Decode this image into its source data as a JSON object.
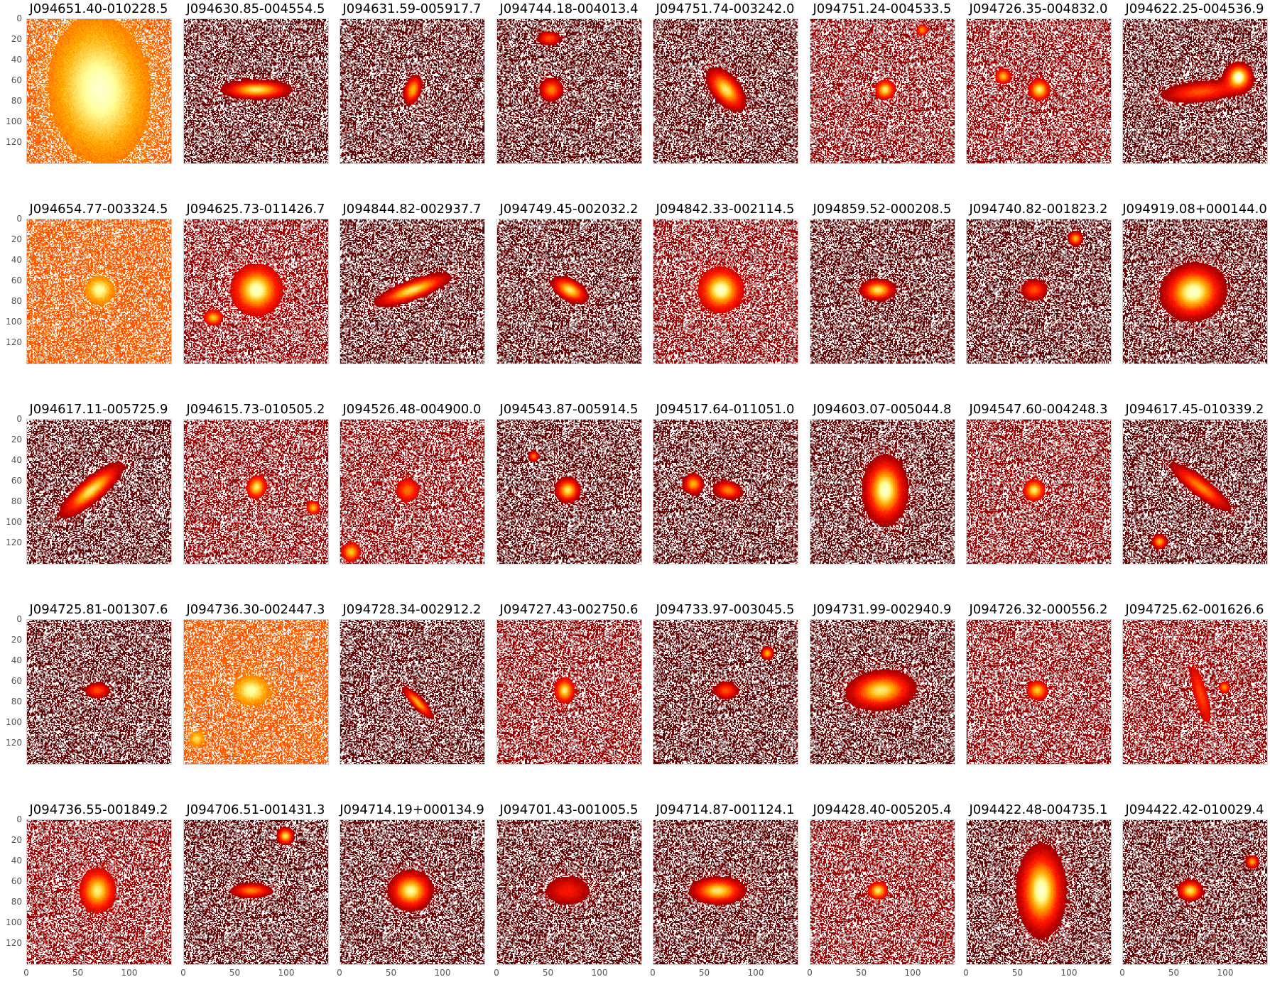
{
  "grid": {
    "rows": 5,
    "cols": 8
  },
  "y_ticks": [
    "0",
    "20",
    "40",
    "60",
    "80",
    "100",
    "120"
  ],
  "x_ticks": [
    "0",
    "50",
    "100"
  ],
  "colors": {
    "bg_dark": "#5a0000",
    "mid_red": "#c82000",
    "orange": "#ff7a00",
    "bright": "#ffe7c8",
    "noise_white": "#ffffff"
  },
  "cutouts": [
    {
      "name": "J094651.40-010228.5",
      "gals": [
        {
          "x": 70,
          "y": 68,
          "rx": 48,
          "ry": 70,
          "a": -0.1,
          "b": 1.0
        }
      ],
      "bg": "orange"
    },
    {
      "name": "J094630.85-004554.5",
      "gals": [
        {
          "x": 70,
          "y": 68,
          "rx": 35,
          "ry": 10,
          "a": 0,
          "b": 0.9
        }
      ],
      "bg": "dark"
    },
    {
      "name": "J094631.59-005917.7",
      "gals": [
        {
          "x": 70,
          "y": 68,
          "rx": 9,
          "ry": 16,
          "a": 0.3,
          "b": 0.8
        }
      ],
      "bg": "dark"
    },
    {
      "name": "J094744.18-004013.4",
      "gals": [
        {
          "x": 52,
          "y": 68,
          "rx": 13,
          "ry": 13,
          "a": 0,
          "b": 0.7
        },
        {
          "x": 50,
          "y": 18,
          "rx": 13,
          "ry": 8,
          "a": 0,
          "b": 0.6
        }
      ],
      "bg": "dark"
    },
    {
      "name": "J094751.74-003242.0",
      "gals": [
        {
          "x": 70,
          "y": 68,
          "rx": 14,
          "ry": 26,
          "a": -0.7,
          "b": 0.9
        }
      ],
      "bg": "dark"
    },
    {
      "name": "J094751.24-004533.5",
      "gals": [
        {
          "x": 72,
          "y": 68,
          "rx": 10,
          "ry": 10,
          "a": 0,
          "b": 0.9
        },
        {
          "x": 108,
          "y": 10,
          "rx": 6,
          "ry": 6,
          "a": 0,
          "b": 0.7
        }
      ],
      "bg": "mixed"
    },
    {
      "name": "J094726.35-004832.0",
      "gals": [
        {
          "x": 70,
          "y": 68,
          "rx": 11,
          "ry": 11,
          "a": 0,
          "b": 0.9
        },
        {
          "x": 35,
          "y": 55,
          "rx": 8,
          "ry": 8,
          "a": 0,
          "b": 0.8
        }
      ],
      "bg": "mixed"
    },
    {
      "name": "J094622.25-004536.9",
      "gals": [
        {
          "x": 112,
          "y": 55,
          "rx": 14,
          "ry": 14,
          "a": 0,
          "b": 1.0
        },
        {
          "x": 75,
          "y": 70,
          "rx": 45,
          "ry": 12,
          "a": -0.1,
          "b": 0.6
        }
      ],
      "bg": "dark"
    },
    {
      "name": "J094654.77-003324.5",
      "gals": [
        {
          "x": 70,
          "y": 68,
          "rx": 14,
          "ry": 14,
          "a": 0,
          "b": 0.9
        }
      ],
      "bg": "orange"
    },
    {
      "name": "J094625.73-011426.7",
      "gals": [
        {
          "x": 70,
          "y": 68,
          "rx": 25,
          "ry": 25,
          "a": 0,
          "b": 1.0
        },
        {
          "x": 28,
          "y": 95,
          "rx": 10,
          "ry": 8,
          "a": 0,
          "b": 0.8
        }
      ],
      "bg": "mixed"
    },
    {
      "name": "J094844.82-002937.7",
      "gals": [
        {
          "x": 70,
          "y": 68,
          "rx": 40,
          "ry": 10,
          "a": -0.35,
          "b": 0.9
        }
      ],
      "bg": "dark"
    },
    {
      "name": "J094749.45-002032.2",
      "gals": [
        {
          "x": 70,
          "y": 68,
          "rx": 20,
          "ry": 11,
          "a": 0.5,
          "b": 0.9
        }
      ],
      "bg": "dark"
    },
    {
      "name": "J094842.33-002114.5",
      "gals": [
        {
          "x": 65,
          "y": 68,
          "rx": 22,
          "ry": 22,
          "a": 0,
          "b": 1.0
        }
      ],
      "bg": "mixed"
    },
    {
      "name": "J094859.52-000208.5",
      "gals": [
        {
          "x": 65,
          "y": 68,
          "rx": 18,
          "ry": 11,
          "a": 0,
          "b": 0.9
        }
      ],
      "bg": "dark"
    },
    {
      "name": "J094740.82-001823.2",
      "gals": [
        {
          "x": 65,
          "y": 68,
          "rx": 15,
          "ry": 12,
          "a": 0,
          "b": 0.6
        },
        {
          "x": 105,
          "y": 18,
          "rx": 8,
          "ry": 8,
          "a": 0,
          "b": 0.8
        }
      ],
      "bg": "dark"
    },
    {
      "name": "J094919.08+000144.0",
      "gals": [
        {
          "x": 68,
          "y": 70,
          "rx": 32,
          "ry": 28,
          "a": -0.2,
          "b": 1.0
        }
      ],
      "bg": "dark"
    },
    {
      "name": "J094617.11-005725.9",
      "gals": [
        {
          "x": 62,
          "y": 68,
          "rx": 40,
          "ry": 12,
          "a": -0.7,
          "b": 0.9
        }
      ],
      "bg": "dark"
    },
    {
      "name": "J094615.73-010505.2",
      "gals": [
        {
          "x": 70,
          "y": 65,
          "rx": 10,
          "ry": 12,
          "a": 0.3,
          "b": 0.9
        },
        {
          "x": 125,
          "y": 85,
          "rx": 7,
          "ry": 7,
          "a": 0,
          "b": 0.8
        }
      ],
      "bg": "mixed"
    },
    {
      "name": "J094526.48-004900.0",
      "gals": [
        {
          "x": 65,
          "y": 68,
          "rx": 13,
          "ry": 13,
          "a": 0,
          "b": 0.6
        },
        {
          "x": 10,
          "y": 128,
          "rx": 10,
          "ry": 10,
          "a": 0,
          "b": 0.8
        }
      ],
      "bg": "mixed"
    },
    {
      "name": "J094543.87-005914.5",
      "gals": [
        {
          "x": 68,
          "y": 68,
          "rx": 13,
          "ry": 13,
          "a": 0,
          "b": 0.9
        },
        {
          "x": 35,
          "y": 35,
          "rx": 6,
          "ry": 6,
          "a": 0,
          "b": 0.7
        }
      ],
      "bg": "dark"
    },
    {
      "name": "J094517.64-011051.0",
      "gals": [
        {
          "x": 38,
          "y": 62,
          "rx": 11,
          "ry": 11,
          "a": 0,
          "b": 0.8
        },
        {
          "x": 72,
          "y": 68,
          "rx": 16,
          "ry": 10,
          "a": 0.2,
          "b": 0.7
        }
      ],
      "bg": "dark"
    },
    {
      "name": "J094603.07-005044.8",
      "gals": [
        {
          "x": 72,
          "y": 68,
          "rx": 22,
          "ry": 34,
          "a": 0,
          "b": 1.0
        }
      ],
      "bg": "dark"
    },
    {
      "name": "J094547.60-004248.3",
      "gals": [
        {
          "x": 65,
          "y": 68,
          "rx": 11,
          "ry": 11,
          "a": 0,
          "b": 0.9
        }
      ],
      "bg": "mixed"
    },
    {
      "name": "J094617.45-010339.2",
      "gals": [
        {
          "x": 75,
          "y": 65,
          "rx": 40,
          "ry": 10,
          "a": 0.65,
          "b": 0.7
        },
        {
          "x": 35,
          "y": 118,
          "rx": 8,
          "ry": 8,
          "a": 0,
          "b": 0.8
        }
      ],
      "bg": "dark"
    },
    {
      "name": "J094725.81-001307.6",
      "gals": [
        {
          "x": 68,
          "y": 68,
          "rx": 14,
          "ry": 9,
          "a": 0,
          "b": 0.6
        }
      ],
      "bg": "dark"
    },
    {
      "name": "J094736.30-002447.3",
      "gals": [
        {
          "x": 65,
          "y": 68,
          "rx": 18,
          "ry": 15,
          "a": 0,
          "b": 0.9
        },
        {
          "x": 12,
          "y": 115,
          "rx": 8,
          "ry": 8,
          "a": 0,
          "b": 0.7
        }
      ],
      "bg": "orange"
    },
    {
      "name": "J094728.34-002912.2",
      "gals": [
        {
          "x": 75,
          "y": 80,
          "rx": 22,
          "ry": 6,
          "a": 0.8,
          "b": 0.8
        }
      ],
      "bg": "dark"
    },
    {
      "name": "J094727.43-002750.6",
      "gals": [
        {
          "x": 65,
          "y": 68,
          "rx": 10,
          "ry": 13,
          "a": 0,
          "b": 0.9
        }
      ],
      "bg": "mixed"
    },
    {
      "name": "J094733.97-003045.5",
      "gals": [
        {
          "x": 70,
          "y": 68,
          "rx": 14,
          "ry": 10,
          "a": 0,
          "b": 0.6
        },
        {
          "x": 110,
          "y": 32,
          "rx": 7,
          "ry": 7,
          "a": 0,
          "b": 0.8
        }
      ],
      "bg": "dark"
    },
    {
      "name": "J094731.99-002940.9",
      "gals": [
        {
          "x": 68,
          "y": 68,
          "rx": 35,
          "ry": 20,
          "a": -0.1,
          "b": 0.9
        }
      ],
      "bg": "dark"
    },
    {
      "name": "J094726.32-000556.2",
      "gals": [
        {
          "x": 68,
          "y": 68,
          "rx": 11,
          "ry": 10,
          "a": 0,
          "b": 0.8
        }
      ],
      "bg": "mixed"
    },
    {
      "name": "J094725.62-001626.6",
      "gals": [
        {
          "x": 75,
          "y": 72,
          "rx": 35,
          "ry": 8,
          "a": 1.3,
          "b": 0.5
        },
        {
          "x": 98,
          "y": 65,
          "rx": 6,
          "ry": 6,
          "a": 0,
          "b": 0.7
        }
      ],
      "bg": "mixed"
    },
    {
      "name": "J094736.55-001849.2",
      "gals": [
        {
          "x": 68,
          "y": 68,
          "rx": 18,
          "ry": 22,
          "a": 0,
          "b": 0.9
        }
      ],
      "bg": "mixed"
    },
    {
      "name": "J094706.51-001431.3",
      "gals": [
        {
          "x": 65,
          "y": 68,
          "rx": 22,
          "ry": 8,
          "a": 0,
          "b": 0.7
        },
        {
          "x": 98,
          "y": 15,
          "rx": 9,
          "ry": 9,
          "a": 0,
          "b": 0.9
        }
      ],
      "bg": "dark"
    },
    {
      "name": "J094714.19+000134.9",
      "gals": [
        {
          "x": 68,
          "y": 68,
          "rx": 22,
          "ry": 20,
          "a": 0,
          "b": 0.95
        }
      ],
      "bg": "dark"
    },
    {
      "name": "J094701.43-001005.5",
      "gals": [
        {
          "x": 68,
          "y": 68,
          "rx": 28,
          "ry": 18,
          "a": 0,
          "b": 0.45
        }
      ],
      "bg": "dark"
    },
    {
      "name": "J094714.87-001124.1",
      "gals": [
        {
          "x": 62,
          "y": 68,
          "rx": 28,
          "ry": 14,
          "a": 0,
          "b": 0.9
        }
      ],
      "bg": "dark"
    },
    {
      "name": "J094428.40-005205.4",
      "gals": [
        {
          "x": 65,
          "y": 68,
          "rx": 10,
          "ry": 9,
          "a": 0,
          "b": 0.9
        }
      ],
      "bg": "mixed"
    },
    {
      "name": "J094422.48-004735.1",
      "gals": [
        {
          "x": 72,
          "y": 68,
          "rx": 24,
          "ry": 45,
          "a": 0,
          "b": 1.0
        }
      ],
      "bg": "dark"
    },
    {
      "name": "J094422.42-010029.4",
      "gals": [
        {
          "x": 65,
          "y": 68,
          "rx": 13,
          "ry": 11,
          "a": 0,
          "b": 0.9
        },
        {
          "x": 125,
          "y": 40,
          "rx": 7,
          "ry": 7,
          "a": 0,
          "b": 0.8
        }
      ],
      "bg": "dark"
    }
  ]
}
